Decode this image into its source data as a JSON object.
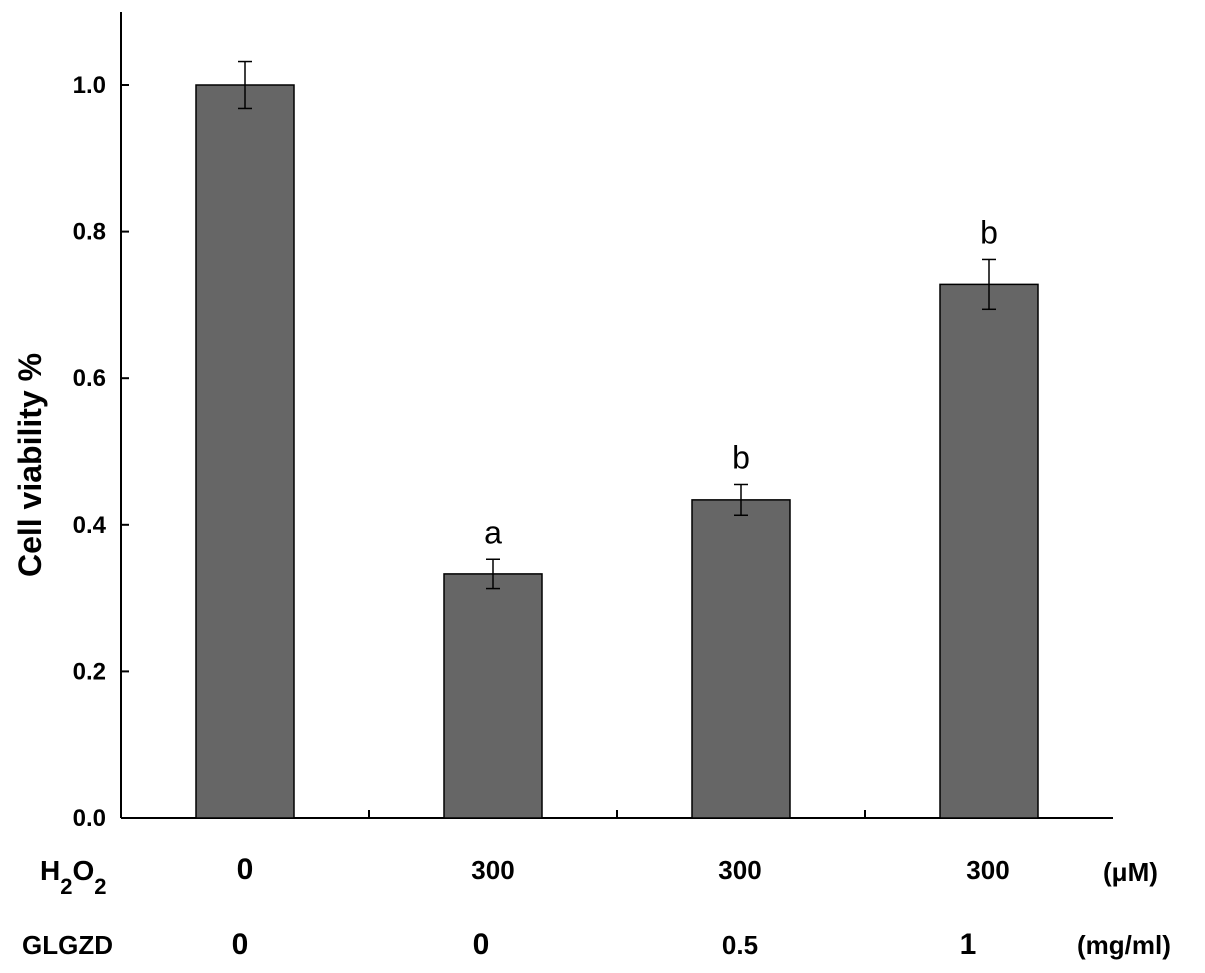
{
  "chart_data": {
    "type": "bar",
    "ylabel": "Cell viability %",
    "ylim": [
      0,
      1.1
    ],
    "yticks": [
      "0.0",
      "0.2",
      "0.4",
      "0.6",
      "0.8",
      "1.0"
    ],
    "bar_color": "#666666",
    "bars": [
      {
        "value": 1.0,
        "error": 0.032,
        "annotation": ""
      },
      {
        "value": 0.333,
        "error": 0.02,
        "annotation": "a"
      },
      {
        "value": 0.434,
        "error": 0.021,
        "annotation": "b"
      },
      {
        "value": 0.728,
        "error": 0.034,
        "annotation": "b"
      }
    ],
    "treatment_rows": [
      {
        "name": "H",
        "sub1": "2",
        "mid": "O",
        "sub2": "2",
        "unit": "(μM)",
        "values": [
          "0",
          "300",
          "300",
          "300"
        ]
      },
      {
        "name": "GLGZD",
        "unit": "(mg/ml)",
        "values": [
          "0",
          "0",
          "0.5",
          "1"
        ]
      }
    ]
  }
}
